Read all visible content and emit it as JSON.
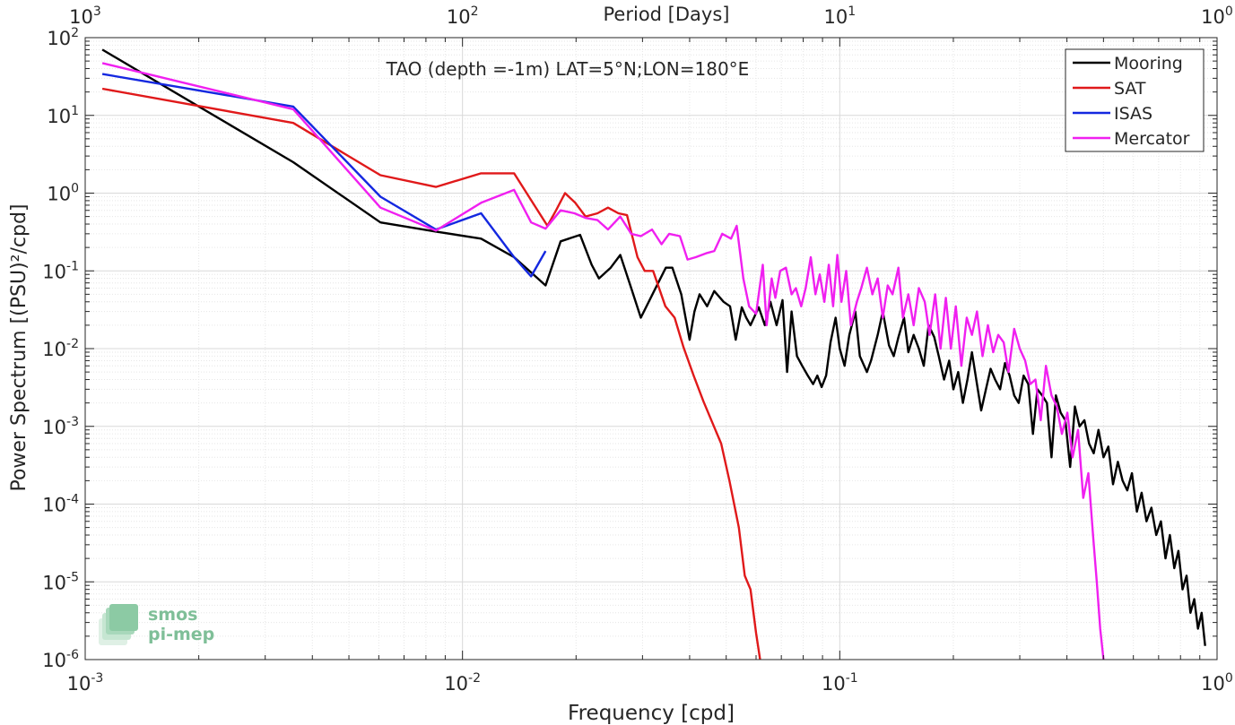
{
  "chart_data": {
    "type": "line",
    "title": "TAO (depth =-1m) LAT=5°N;LON=180°E",
    "xlabel": "Frequency [cpd]",
    "ylabel": "Power Spectrum [(PSU)²/cpd]",
    "top_xlabel": "Period [Days]",
    "x_scale": "log",
    "y_scale": "log",
    "xlim": [
      0.001,
      1
    ],
    "ylim": [
      1e-06,
      100
    ],
    "grid": true,
    "legend_position": "top-right",
    "x_ticks": [
      0.001,
      0.01,
      0.1,
      1
    ],
    "y_ticks": [
      1e-06,
      1e-05,
      0.0001,
      0.001,
      0.01,
      0.1,
      1,
      10,
      100
    ],
    "period_ticks": [
      1000,
      100,
      10,
      1
    ],
    "series": [
      {
        "name": "Mooring",
        "color": "#000000",
        "x": [
          0.00111,
          0.00356,
          0.00606,
          0.0085,
          0.0112,
          0.0137,
          0.0166,
          0.0182,
          0.0205,
          0.022,
          0.023,
          0.0247,
          0.0262,
          0.028,
          0.0297,
          0.0322,
          0.0346,
          0.036,
          0.038,
          0.04,
          0.0412,
          0.0425,
          0.0445,
          0.0465,
          0.0492,
          0.0512,
          0.053,
          0.055,
          0.0565,
          0.058,
          0.061,
          0.0633,
          0.0655,
          0.068,
          0.0705,
          0.0725,
          0.0745,
          0.077,
          0.0795,
          0.0823,
          0.085,
          0.0872,
          0.0895,
          0.092,
          0.0945,
          0.0975,
          0.1,
          0.103,
          0.106,
          0.11,
          0.113,
          0.118,
          0.121,
          0.126,
          0.13,
          0.135,
          0.139,
          0.143,
          0.148,
          0.152,
          0.157,
          0.162,
          0.167,
          0.172,
          0.178,
          0.183,
          0.189,
          0.195,
          0.2,
          0.206,
          0.212,
          0.218,
          0.224,
          0.231,
          0.237,
          0.244,
          0.251,
          0.258,
          0.266,
          0.274,
          0.282,
          0.29,
          0.298,
          0.307,
          0.316,
          0.325,
          0.334,
          0.344,
          0.354,
          0.364,
          0.374,
          0.385,
          0.396,
          0.408,
          0.42,
          0.432,
          0.445,
          0.458,
          0.471,
          0.485,
          0.5,
          0.515,
          0.53,
          0.546,
          0.562,
          0.578,
          0.595,
          0.613,
          0.631,
          0.65,
          0.67,
          0.69,
          0.71,
          0.73,
          0.75,
          0.77,
          0.79,
          0.81,
          0.83,
          0.85,
          0.87,
          0.89,
          0.91,
          0.93
        ],
        "y": [
          70,
          2.5,
          0.42,
          0.32,
          0.26,
          0.15,
          0.065,
          0.24,
          0.29,
          0.12,
          0.08,
          0.11,
          0.16,
          0.06,
          0.025,
          0.055,
          0.11,
          0.11,
          0.05,
          0.013,
          0.03,
          0.05,
          0.035,
          0.055,
          0.04,
          0.035,
          0.013,
          0.034,
          0.025,
          0.02,
          0.034,
          0.02,
          0.04,
          0.02,
          0.042,
          0.005,
          0.03,
          0.008,
          0.006,
          0.0045,
          0.0035,
          0.0045,
          0.0032,
          0.0045,
          0.012,
          0.025,
          0.01,
          0.006,
          0.015,
          0.03,
          0.008,
          0.005,
          0.007,
          0.015,
          0.03,
          0.011,
          0.008,
          0.014,
          0.025,
          0.009,
          0.015,
          0.01,
          0.006,
          0.02,
          0.014,
          0.008,
          0.004,
          0.007,
          0.003,
          0.005,
          0.002,
          0.004,
          0.009,
          0.0035,
          0.0016,
          0.003,
          0.0055,
          0.004,
          0.003,
          0.0065,
          0.0045,
          0.0025,
          0.002,
          0.0045,
          0.0035,
          0.0008,
          0.003,
          0.0025,
          0.002,
          0.0004,
          0.0025,
          0.0015,
          0.0012,
          0.0003,
          0.0018,
          0.001,
          0.0012,
          0.0006,
          0.00045,
          0.0009,
          0.0004,
          0.00055,
          0.00018,
          0.00035,
          0.0002,
          0.00015,
          0.00025,
          8e-05,
          0.00014,
          6e-05,
          9e-05,
          4e-05,
          6e-05,
          2e-05,
          4e-05,
          1.5e-05,
          2.5e-05,
          8e-06,
          1.2e-05,
          4e-06,
          6e-06,
          2.5e-06,
          4e-06,
          1.5e-06
        ]
      },
      {
        "name": "SAT",
        "color": "#e0191a",
        "x": [
          0.00111,
          0.00356,
          0.00606,
          0.0085,
          0.0112,
          0.0137,
          0.0155,
          0.0168,
          0.0177,
          0.0187,
          0.0199,
          0.0212,
          0.0228,
          0.0243,
          0.0259,
          0.0273,
          0.0291,
          0.0304,
          0.032,
          0.0345,
          0.0365,
          0.0385,
          0.041,
          0.0435,
          0.046,
          0.0485,
          0.051,
          0.054,
          0.056,
          0.058,
          0.06,
          0.0615
        ],
        "y": [
          22,
          8,
          1.7,
          1.2,
          1.8,
          1.8,
          0.7,
          0.38,
          0.6,
          1.0,
          0.75,
          0.5,
          0.55,
          0.65,
          0.55,
          0.52,
          0.15,
          0.1,
          0.1,
          0.035,
          0.025,
          0.0105,
          0.0045,
          0.0021,
          0.0011,
          0.0006,
          0.0002,
          5e-05,
          1.2e-05,
          8e-06,
          2.2e-06,
          1e-06
        ]
      },
      {
        "name": "ISAS",
        "color": "#1428e0",
        "x": [
          0.00111,
          0.00356,
          0.00606,
          0.0085,
          0.0112,
          0.0137,
          0.0152,
          0.0166
        ],
        "y": [
          34,
          13,
          0.9,
          0.34,
          0.55,
          0.15,
          0.085,
          0.18
        ]
      },
      {
        "name": "Mercator",
        "color": "#f020f0",
        "x": [
          0.00111,
          0.00356,
          0.00606,
          0.0085,
          0.0112,
          0.0137,
          0.0152,
          0.0166,
          0.0182,
          0.0198,
          0.0212,
          0.0228,
          0.0243,
          0.0262,
          0.028,
          0.0297,
          0.0318,
          0.0337,
          0.0353,
          0.0377,
          0.0395,
          0.0415,
          0.0445,
          0.0465,
          0.0488,
          0.0515,
          0.0533,
          0.0555,
          0.0575,
          0.06,
          0.0625,
          0.064,
          0.066,
          0.0675,
          0.0695,
          0.072,
          0.0745,
          0.0765,
          0.079,
          0.0812,
          0.0838,
          0.0862,
          0.0885,
          0.091,
          0.0935,
          0.096,
          0.0985,
          0.101,
          0.104,
          0.107,
          0.111,
          0.114,
          0.118,
          0.122,
          0.126,
          0.13,
          0.134,
          0.138,
          0.143,
          0.147,
          0.152,
          0.157,
          0.162,
          0.168,
          0.173,
          0.179,
          0.185,
          0.191,
          0.197,
          0.203,
          0.21,
          0.217,
          0.224,
          0.231,
          0.239,
          0.247,
          0.255,
          0.263,
          0.272,
          0.28,
          0.29,
          0.3,
          0.31,
          0.32,
          0.33,
          0.341,
          0.352,
          0.364,
          0.376,
          0.388,
          0.401,
          0.414,
          0.428,
          0.442,
          0.456,
          0.47,
          0.48,
          0.49,
          0.5
        ],
        "y": [
          47,
          12,
          0.65,
          0.33,
          0.75,
          1.1,
          0.42,
          0.35,
          0.6,
          0.55,
          0.48,
          0.45,
          0.34,
          0.5,
          0.3,
          0.28,
          0.34,
          0.22,
          0.3,
          0.28,
          0.14,
          0.15,
          0.17,
          0.18,
          0.3,
          0.26,
          0.38,
          0.08,
          0.035,
          0.028,
          0.12,
          0.02,
          0.08,
          0.045,
          0.1,
          0.11,
          0.05,
          0.06,
          0.035,
          0.06,
          0.15,
          0.05,
          0.09,
          0.04,
          0.12,
          0.035,
          0.16,
          0.04,
          0.1,
          0.02,
          0.04,
          0.06,
          0.11,
          0.05,
          0.08,
          0.025,
          0.065,
          0.05,
          0.11,
          0.025,
          0.05,
          0.02,
          0.06,
          0.04,
          0.015,
          0.05,
          0.01,
          0.045,
          0.01,
          0.035,
          0.006,
          0.025,
          0.015,
          0.03,
          0.008,
          0.02,
          0.009,
          0.015,
          0.012,
          0.005,
          0.018,
          0.01,
          0.007,
          0.0035,
          0.004,
          0.0012,
          0.006,
          0.0025,
          0.0018,
          0.0008,
          0.0015,
          0.0004,
          0.0009,
          0.00012,
          0.00025,
          3.5e-05,
          1e-05,
          2.5e-06,
          1e-06
        ]
      }
    ]
  },
  "logo": {
    "line1": "smos",
    "line2": "pi-mep"
  }
}
